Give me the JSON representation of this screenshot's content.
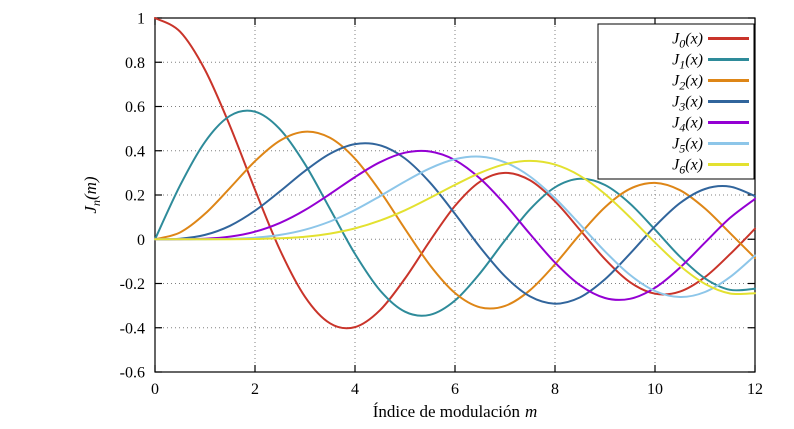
{
  "figure": {
    "xlabel": {
      "text": "Índice de modulación",
      "var": "m"
    },
    "ylabel": {
      "base": "J",
      "sub": "n",
      "args": "(m)"
    }
  },
  "chart_data": {
    "type": "line",
    "xlabel": "Índice de modulación m",
    "ylabel": "J_n(m)",
    "xlim": [
      0,
      12
    ],
    "ylim": [
      -0.6,
      1
    ],
    "xticks": [
      "0",
      "2",
      "4",
      "6",
      "8",
      "10",
      "12"
    ],
    "yticks": [
      "1",
      "0.8",
      "0.6",
      "0.4",
      "0.2",
      "0",
      "-0.2",
      "-0.4",
      "-0.6"
    ],
    "grid": true,
    "grid_style": "dotted",
    "legend_position": "top-right",
    "x": [
      0,
      0.5,
      1,
      1.5,
      2,
      2.5,
      3,
      3.5,
      4,
      4.5,
      5,
      5.5,
      6,
      6.5,
      7,
      7.5,
      8,
      8.5,
      9,
      9.5,
      10,
      10.5,
      11,
      11.5,
      12
    ],
    "series": [
      {
        "name": "J0(x)",
        "label": {
          "base": "J",
          "sub": "0",
          "args": "(x)"
        },
        "color": "#c9342a",
        "values": [
          1,
          0.9385,
          0.7652,
          0.5118,
          0.2239,
          -0.0484,
          -0.2601,
          -0.3801,
          -0.3971,
          -0.3205,
          -0.1776,
          -0.0068,
          0.1506,
          0.2601,
          0.3001,
          0.2663,
          0.1717,
          0.0419,
          -0.0903,
          -0.1939,
          -0.2459,
          -0.2366,
          -0.1712,
          -0.0677,
          0.0477
        ]
      },
      {
        "name": "J1(x)",
        "label": {
          "base": "J",
          "sub": "1",
          "args": "(x)"
        },
        "color": "#2e8b9a",
        "values": [
          0,
          0.2423,
          0.4401,
          0.5579,
          0.5767,
          0.4971,
          0.3391,
          0.1374,
          -0.066,
          -0.2311,
          -0.3276,
          -0.3414,
          -0.2767,
          -0.1538,
          -0.0047,
          0.1352,
          0.2346,
          0.2731,
          0.2453,
          0.1613,
          0.0435,
          -0.0789,
          -0.1768,
          -0.2284,
          -0.2234
        ]
      },
      {
        "name": "J2(x)",
        "label": {
          "base": "J",
          "sub": "2",
          "args": "(x)"
        },
        "color": "#de8617",
        "values": [
          0,
          0.0306,
          0.1149,
          0.2321,
          0.3528,
          0.4461,
          0.4861,
          0.4586,
          0.3641,
          0.2178,
          0.0466,
          -0.1173,
          -0.2429,
          -0.3074,
          -0.3014,
          -0.2303,
          -0.113,
          0.0223,
          0.1448,
          0.2279,
          0.2546,
          0.2216,
          0.139,
          0.0279,
          -0.0849
        ]
      },
      {
        "name": "J3(x)",
        "label": {
          "base": "J",
          "sub": "3",
          "args": "(x)"
        },
        "color": "#31659c",
        "values": [
          0,
          0.0026,
          0.0196,
          0.061,
          0.1289,
          0.2166,
          0.3091,
          0.3868,
          0.4302,
          0.4247,
          0.3648,
          0.2561,
          0.1148,
          -0.0353,
          -0.1676,
          -0.2581,
          -0.2911,
          -0.2626,
          -0.1809,
          -0.0653,
          0.0584,
          0.1633,
          0.2273,
          0.2381,
          0.1951
        ]
      },
      {
        "name": "J4(x)",
        "label": {
          "base": "J",
          "sub": "4",
          "args": "(x)"
        },
        "color": "#9400d3",
        "values": [
          0,
          0.0002,
          0.0025,
          0.0118,
          0.034,
          0.0738,
          0.132,
          0.2044,
          0.2811,
          0.3484,
          0.3912,
          0.3967,
          0.3576,
          0.2748,
          0.1578,
          0.0238,
          -0.1054,
          -0.2077,
          -0.2655,
          -0.2691,
          -0.2196,
          -0.1283,
          -0.015,
          0.0963,
          0.1825
        ]
      },
      {
        "name": "J5(x)",
        "label": {
          "base": "J",
          "sub": "5",
          "args": "(x)"
        },
        "color": "#8dc6e9",
        "values": [
          0,
          0.0,
          0.0002,
          0.0018,
          0.007,
          0.0195,
          0.043,
          0.0804,
          0.1321,
          0.1947,
          0.2611,
          0.3209,
          0.3621,
          0.3736,
          0.3479,
          0.2835,
          0.1858,
          0.0671,
          -0.055,
          -0.1613,
          -0.2341,
          -0.2611,
          -0.2383,
          -0.1711,
          -0.0735
        ]
      },
      {
        "name": "J6(x)",
        "label": {
          "base": "J",
          "sub": "6",
          "args": "(x)"
        },
        "color": "#e3e130",
        "values": [
          0,
          0.0,
          0.0,
          0.0002,
          0.0012,
          0.0042,
          0.0114,
          0.0254,
          0.0491,
          0.0843,
          0.131,
          0.1868,
          0.2458,
          0.2999,
          0.3392,
          0.3541,
          0.3376,
          0.2867,
          0.2043,
          0.0993,
          -0.0145,
          -0.1203,
          -0.2016,
          -0.2451,
          -0.2437
        ]
      }
    ]
  }
}
